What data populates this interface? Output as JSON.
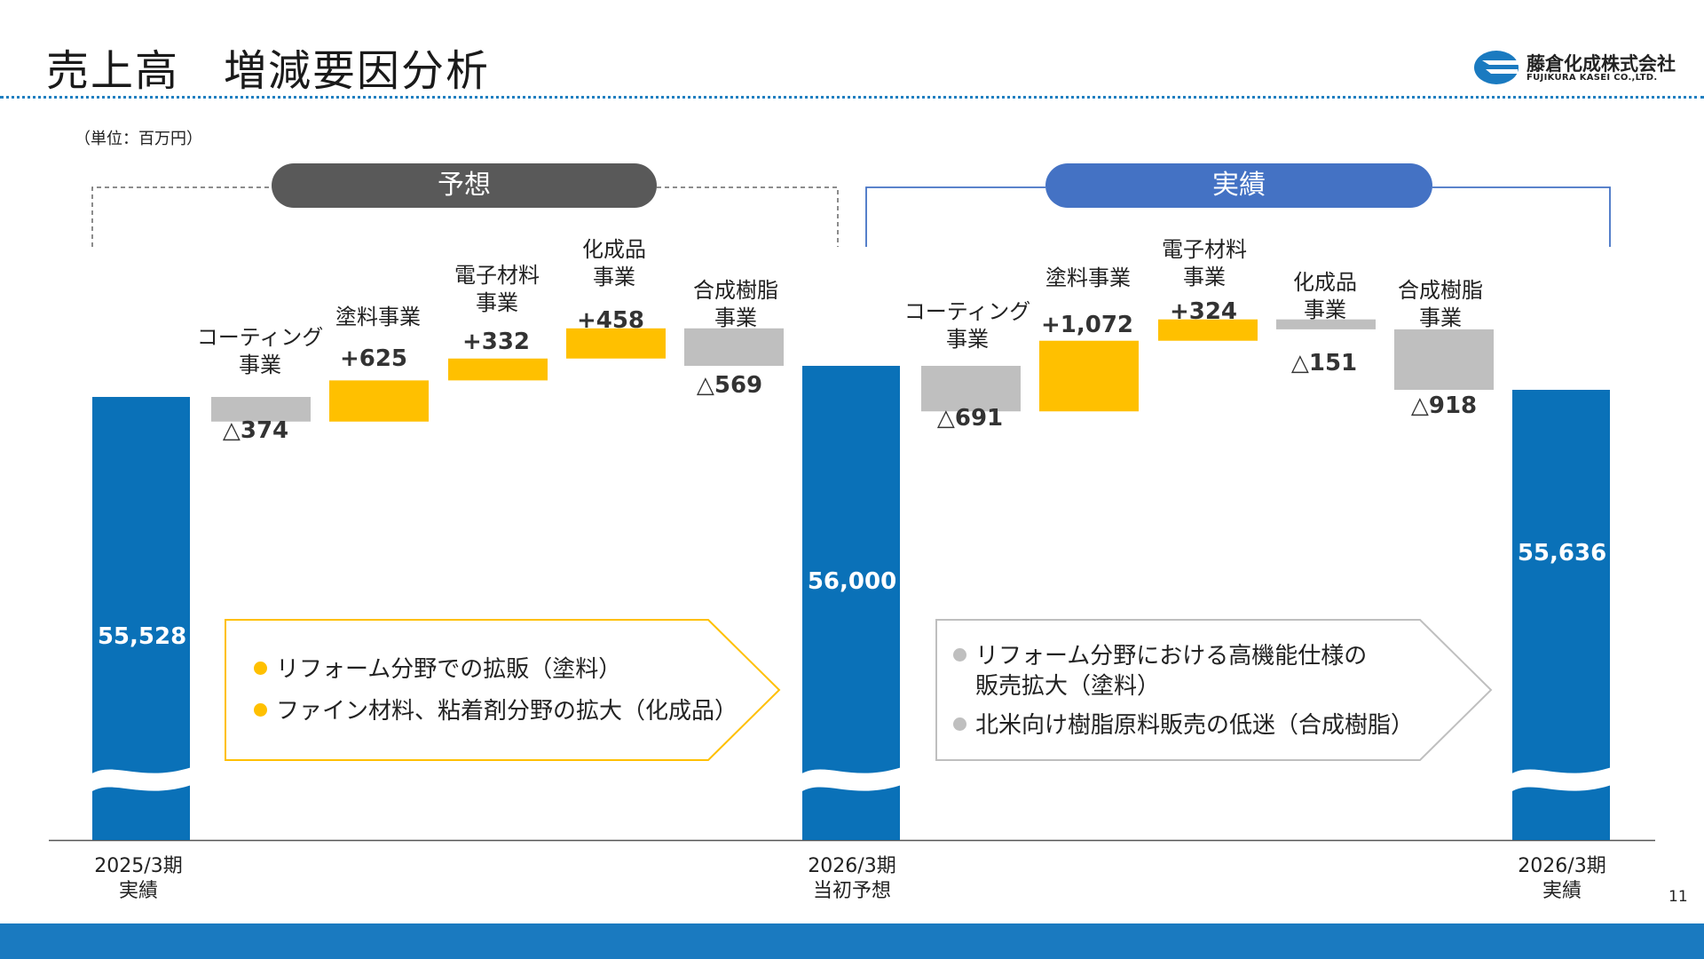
{
  "page": {
    "title": "売上高　増減要因分析",
    "unit_note": "（単位：百万円）",
    "page_number": "11"
  },
  "logo": {
    "name": "藤倉化成株式会社",
    "subtitle": "FUJIKURA KASEI CO.,LTD."
  },
  "brackets": {
    "forecast_label": "予想",
    "actual_label": "実績"
  },
  "colors": {
    "total_bar": "#0a71b8",
    "increase": "#ffc000",
    "decrease": "#bfbfbf",
    "forecast_pill": "#595959",
    "actual_pill": "#4472c4",
    "footer": "#1a7ac0"
  },
  "x_labels": {
    "start": [
      "2025/3期",
      "実績"
    ],
    "mid": [
      "2026/3期",
      "当初予想"
    ],
    "end": [
      "2026/3期",
      "実績"
    ]
  },
  "notes": {
    "forecast": [
      "リフォーム分野での拡販（塗料）",
      "ファイン材料、粘着剤分野の拡大（化成品）"
    ],
    "actual": [
      "リフォーム分野における高機能仕様の",
      "販売拡大（塗料）",
      "北米向け樹脂原料販売の低迷（合成樹脂）"
    ]
  },
  "chart_data": {
    "type": "bar",
    "subtype": "waterfall",
    "axis_break": true,
    "title": "売上高　増減要因分析",
    "unit": "百万円",
    "totals": [
      {
        "name": "2025/3期 実績",
        "value": 55528,
        "label": "55,528"
      },
      {
        "name": "2026/3期 当初予想",
        "value": 56000,
        "label": "56,000"
      },
      {
        "name": "2026/3期 実績",
        "value": 55636,
        "label": "55,636"
      }
    ],
    "forecast_changes": [
      {
        "category": "コーティング事業",
        "value": -374,
        "label": "△374"
      },
      {
        "category": "塗料事業",
        "value": 625,
        "label": "+625"
      },
      {
        "category": "電子材料事業",
        "value": 332,
        "label": "+332"
      },
      {
        "category": "化成品事業",
        "value": 458,
        "label": "+458"
      },
      {
        "category": "合成樹脂事業",
        "value": -569,
        "label": "△569"
      }
    ],
    "actual_changes": [
      {
        "category": "コーティング事業",
        "value": -691,
        "label": "△691"
      },
      {
        "category": "塗料事業",
        "value": 1072,
        "label": "+1,072"
      },
      {
        "category": "電子材料事業",
        "value": 324,
        "label": "+324"
      },
      {
        "category": "化成品事業",
        "value": -151,
        "label": "△151"
      },
      {
        "category": "合成樹脂事業",
        "value": -918,
        "label": "△918"
      }
    ],
    "category_display": {
      "forecast": [
        [
          "コーティング",
          "事業"
        ],
        [
          "塗料事業"
        ],
        [
          "電子材料",
          "事業"
        ],
        [
          "化成品",
          "事業"
        ],
        [
          "合成樹脂",
          "事業"
        ]
      ],
      "actual": [
        [
          "コーティング",
          "事業"
        ],
        [
          "塗料事業"
        ],
        [
          "電子材料",
          "事業"
        ],
        [
          "化成品",
          "事業"
        ],
        [
          "合成樹脂",
          "事業"
        ]
      ]
    }
  }
}
